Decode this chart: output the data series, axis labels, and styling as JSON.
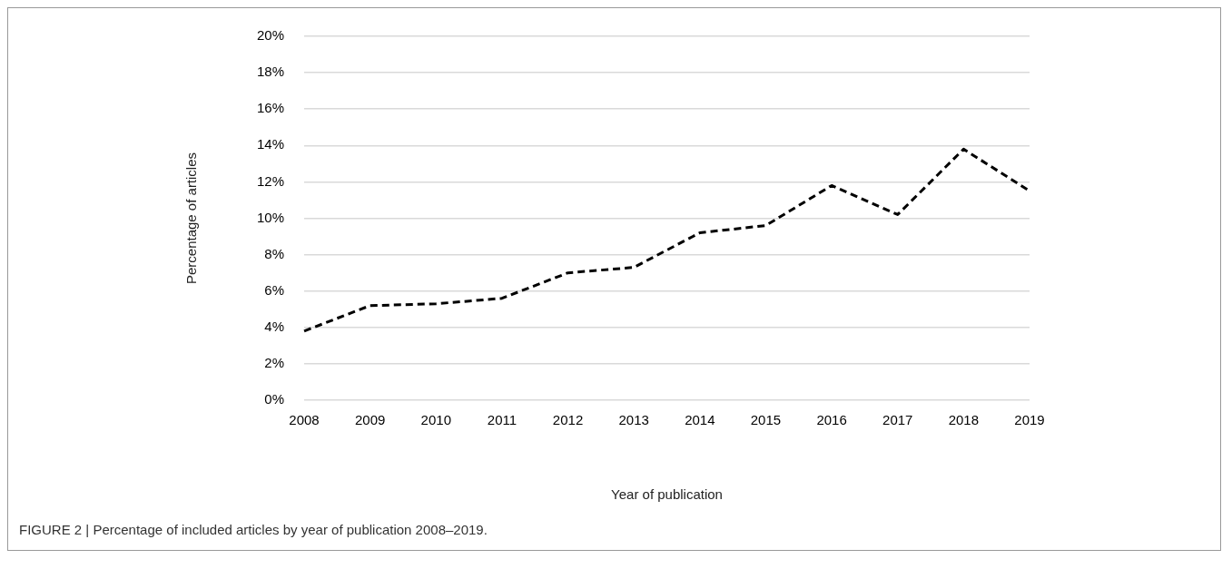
{
  "chart_data": {
    "type": "line",
    "categories": [
      "2008",
      "2009",
      "2010",
      "2011",
      "2012",
      "2013",
      "2014",
      "2015",
      "2016",
      "2017",
      "2018",
      "2019"
    ],
    "series": [
      {
        "color": "#000000",
        "values": [
          3.8,
          5.2,
          5.3,
          5.6,
          7.0,
          7.3,
          9.2,
          9.6,
          11.8,
          10.2,
          13.8,
          11.5
        ]
      }
    ],
    "ylim": [
      0,
      20
    ],
    "yticks": [
      {
        "value": 0,
        "label": "0%"
      },
      {
        "value": 2,
        "label": "2%"
      },
      {
        "value": 4,
        "label": "4%"
      },
      {
        "value": 6,
        "label": "6%"
      },
      {
        "value": 8,
        "label": "8%"
      },
      {
        "value": 10,
        "label": "10%"
      },
      {
        "value": 12,
        "label": "12%"
      },
      {
        "value": 14,
        "label": "14%"
      },
      {
        "value": 16,
        "label": "16%"
      },
      {
        "value": 18,
        "label": "18%"
      },
      {
        "value": 20,
        "label": "20%"
      }
    ],
    "xlabel": "Year of publication",
    "ylabel": "Percentage of articles",
    "grid": "y",
    "legend": false,
    "marker": "none",
    "line_style": "dashed",
    "annotations": [
      "FIGURE 2 | Percentage of included articles by year of publication 2008–2019."
    ]
  }
}
